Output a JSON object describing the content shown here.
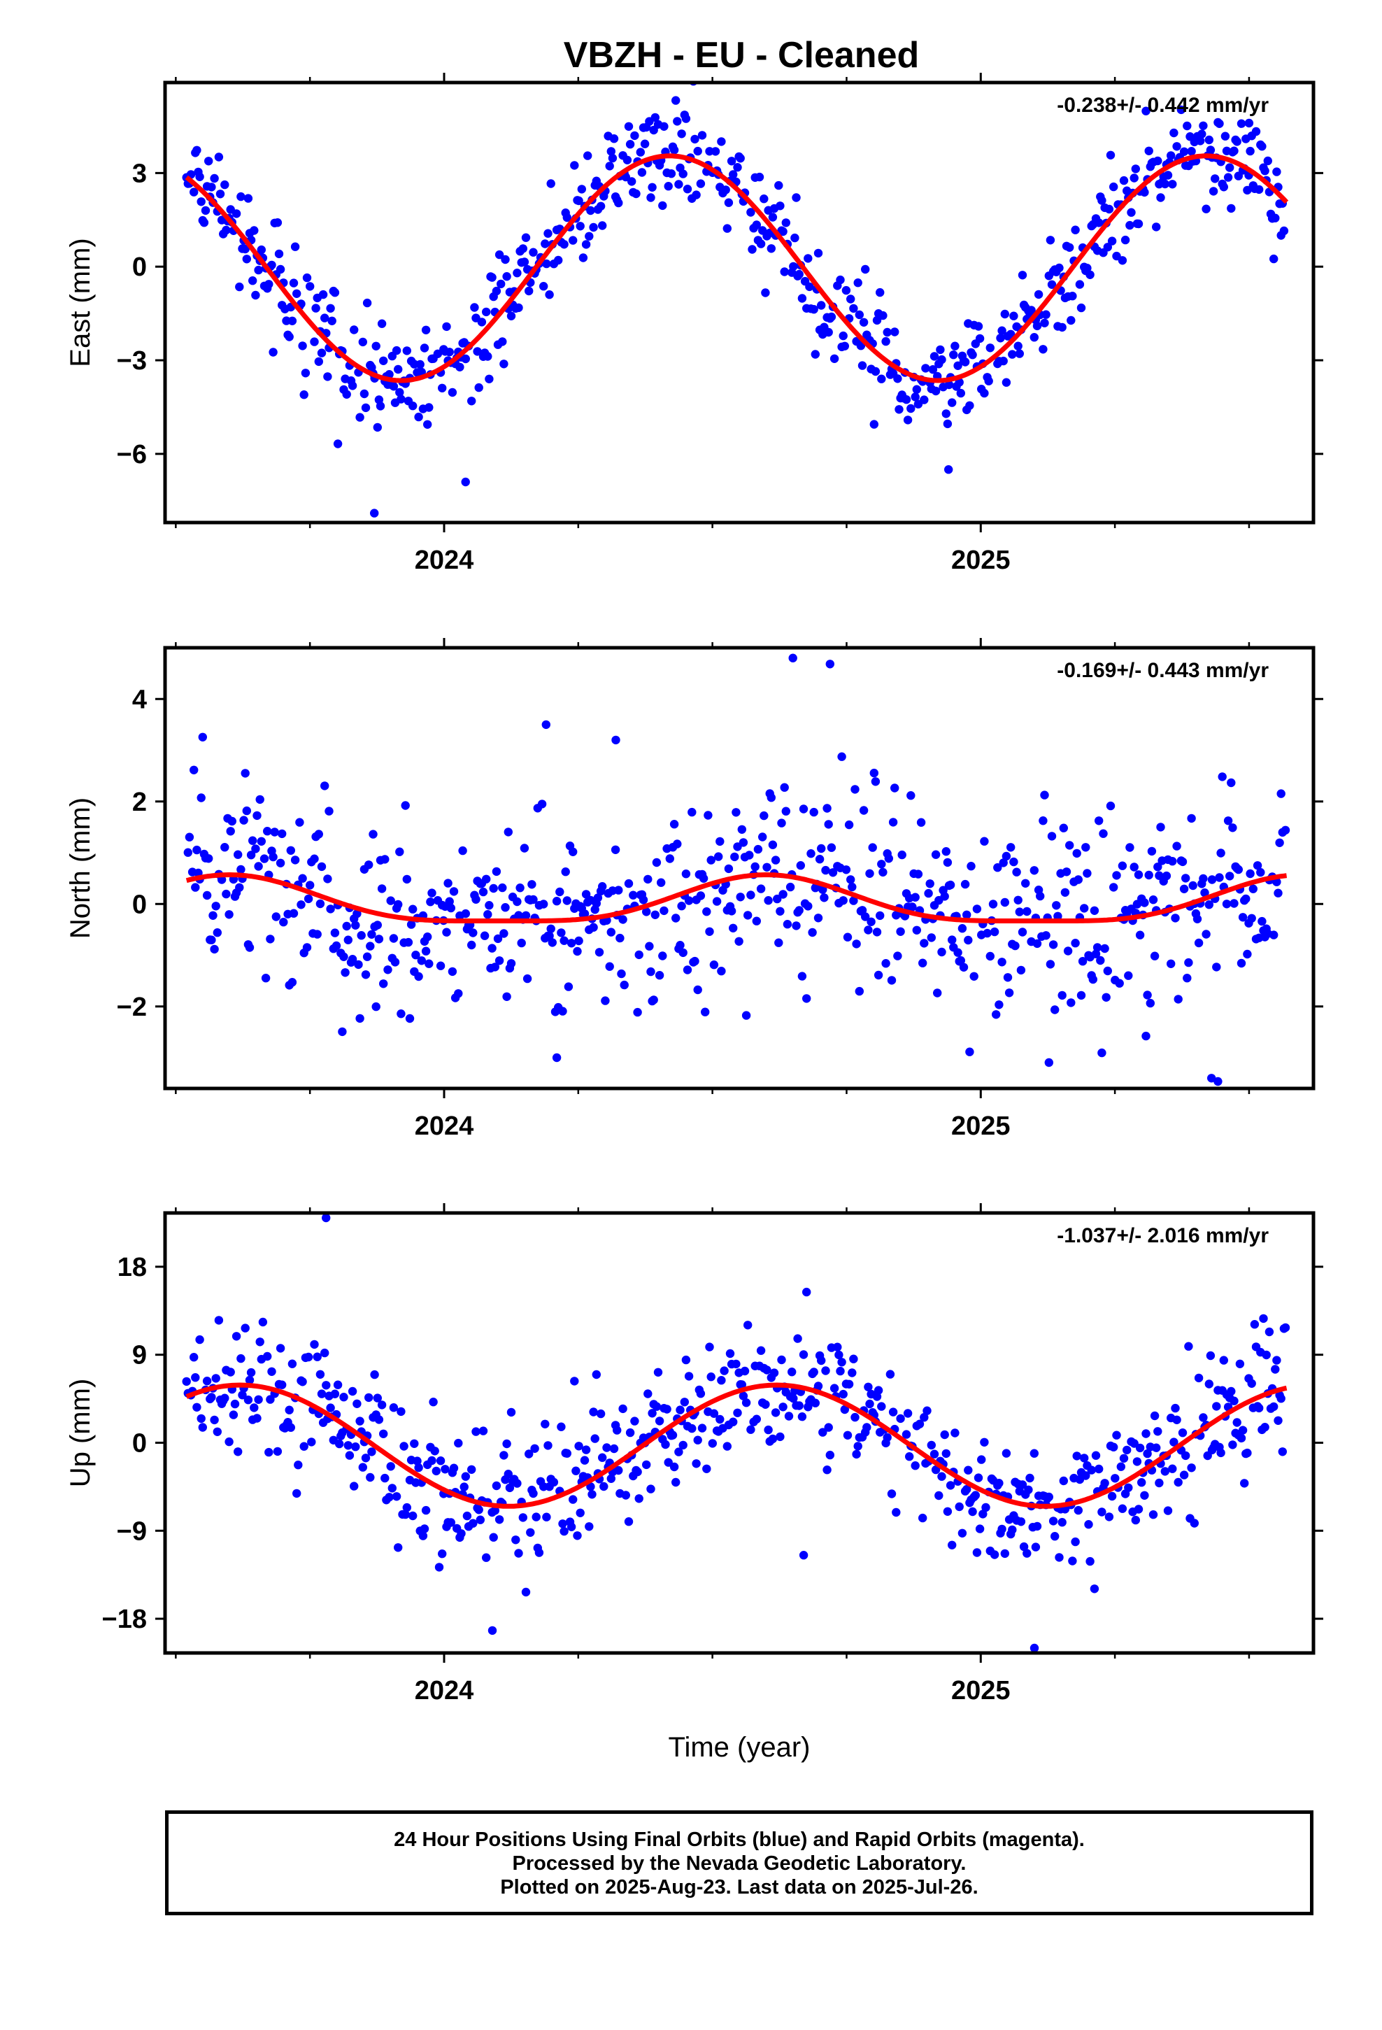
{
  "title": "VBZH  - EU - Cleaned",
  "colors": {
    "data": "#0000ff",
    "fit": "#ff0000",
    "frame": "#000000"
  },
  "chart_data": [
    {
      "type": "scatter",
      "ylabel": "East (mm)",
      "xlabel": "",
      "rate": "-0.238+/- 0.442 mm/yr",
      "xlim": [
        2023.48,
        2025.62
      ],
      "ylim": [
        -8.2,
        5.9
      ],
      "yticks": [
        3,
        0,
        -3,
        -6
      ],
      "ytick_labels": [
        "3",
        "0",
        "−3",
        "−6"
      ],
      "xticks": [
        2024,
        2025
      ],
      "xtick_labels": [
        "2024",
        "2025"
      ],
      "fit": {
        "annual_amplitude": 3.6,
        "annual_phase_year": 2024.42,
        "offset": -0.05
      },
      "noise_sd": 0.85,
      "outliers": [
        [
          2023.87,
          -7.9
        ],
        [
          2024.04,
          -6.9
        ],
        [
          2024.94,
          -6.5
        ],
        [
          2025.5,
          4.6
        ]
      ]
    },
    {
      "type": "scatter",
      "ylabel": "North (mm)",
      "xlabel": "",
      "rate": "-0.169+/- 0.443 mm/yr",
      "xlim": [
        2023.48,
        2025.62
      ],
      "ylim": [
        -3.6,
        5.0
      ],
      "yticks": [
        4,
        2,
        0,
        -2
      ],
      "ytick_labels": [
        "4",
        "2",
        "0",
        "−2"
      ],
      "xticks": [
        2024,
        2025
      ],
      "xtick_labels": [
        "2024",
        "2025"
      ],
      "fit": {
        "annual_amplitude": 0.45,
        "annual_phase_year": 2024.6,
        "offset": 0.0,
        "semiannual_amplitude": 0.12
      },
      "noise_sd": 0.95,
      "outliers": [
        [
          2024.65,
          4.8
        ],
        [
          2024.19,
          3.5
        ],
        [
          2024.32,
          3.2
        ],
        [
          2024.21,
          -3.0
        ],
        [
          2025.43,
          -3.4
        ]
      ]
    },
    {
      "type": "scatter",
      "ylabel": "Up (mm)",
      "xlabel": "Time (year)",
      "rate": "-1.037+/- 2.016 mm/yr",
      "xlim": [
        2023.48,
        2025.62
      ],
      "ylim": [
        -21.5,
        23.5
      ],
      "yticks": [
        18,
        9,
        0,
        -9,
        -18
      ],
      "ytick_labels": [
        "18",
        "9",
        "0",
        "−9",
        "−18"
      ],
      "xticks": [
        2024,
        2025
      ],
      "xtick_labels": [
        "2024",
        "2025"
      ],
      "fit": {
        "annual_amplitude": 6.2,
        "annual_phase_year": 2024.62,
        "offset": -0.3
      },
      "noise_sd": 3.6,
      "outliers": [
        [
          2023.78,
          23.0
        ],
        [
          2024.09,
          -19.2
        ],
        [
          2025.1,
          -21.0
        ],
        [
          2024.67,
          -11.5
        ]
      ]
    }
  ],
  "footer": {
    "line1": "24 Hour Positions Using Final Orbits (blue) and Rapid Orbits (magenta).",
    "line2": "Processed by the Nevada Geodetic Laboratory.",
    "line3": "Plotted on 2025-Aug-23. Last data on 2025-Jul-26."
  }
}
